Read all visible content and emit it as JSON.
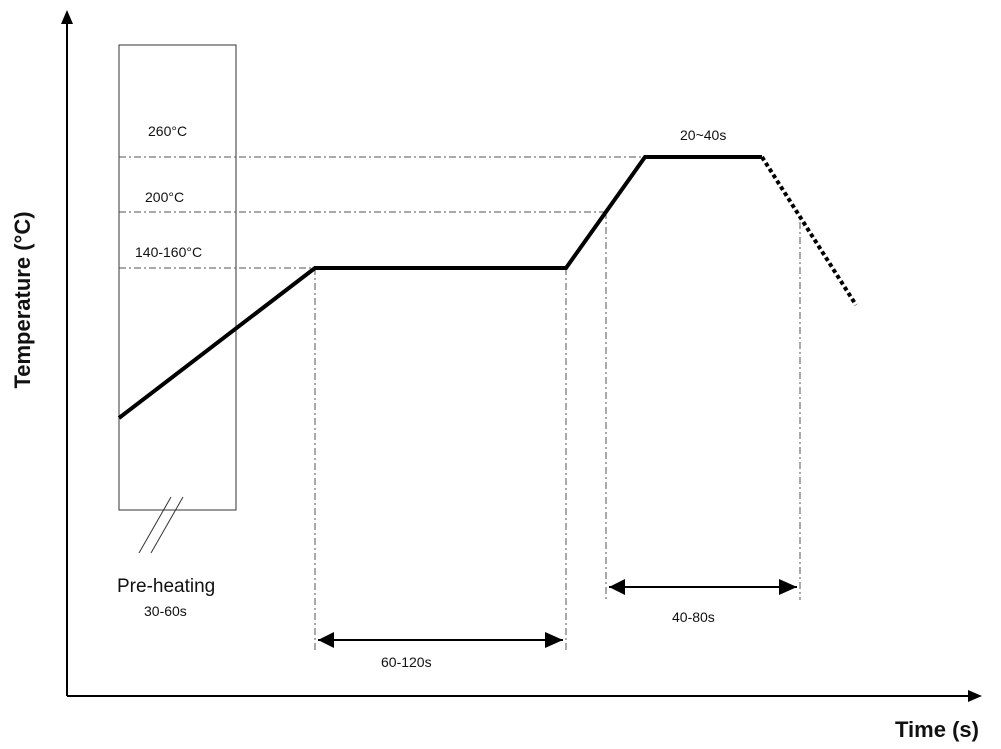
{
  "axes": {
    "y_label": "Temperature (°C)",
    "x_label": "Time (s)"
  },
  "levels": {
    "peak": "260°C",
    "reflow": "200°C",
    "soak": "140-160°C"
  },
  "durations": {
    "peak_hold": "20~40s",
    "above_reflow": "40-80s",
    "soak": "60-120s",
    "preheat_time": "30-60s"
  },
  "zones": {
    "preheat_label": "Pre-heating"
  },
  "colors": {
    "line": "#000000",
    "guide": "#555555"
  }
}
